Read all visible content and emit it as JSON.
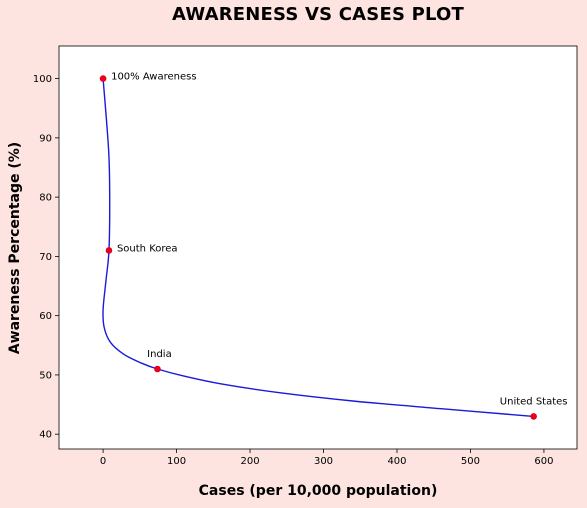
{
  "chart_data": {
    "type": "line",
    "title": "AWARENESS VS CASES PLOT",
    "xlabel": "Cases (per 10,000 population)",
    "ylabel": "Awareness Percentage (%)",
    "xlim": [
      -60,
      645
    ],
    "ylim": [
      37.5,
      105.5
    ],
    "xticks": [
      0,
      100,
      200,
      300,
      400,
      500,
      600
    ],
    "yticks": [
      40,
      50,
      60,
      70,
      80,
      90,
      100
    ],
    "grid": false,
    "line_color": "#1a1adb",
    "marker_color": "#e8001c",
    "points": [
      {
        "label": "100% Awareness",
        "x": 0,
        "y": 100
      },
      {
        "label": "South Korea",
        "x": 8,
        "y": 71
      },
      {
        "label": "India",
        "x": 74,
        "y": 51
      },
      {
        "label": "United States",
        "x": 586,
        "y": 43
      }
    ],
    "curve": {
      "x": [
        0,
        7.5,
        9,
        8,
        4,
        0,
        1.5,
        10,
        28,
        52,
        74,
        110,
        160,
        240,
        340,
        460,
        586
      ],
      "y": [
        100,
        88,
        80,
        71,
        66,
        61,
        58,
        55.5,
        53.5,
        52,
        51,
        49.8,
        48.5,
        47,
        45.6,
        44.3,
        43
      ]
    }
  }
}
